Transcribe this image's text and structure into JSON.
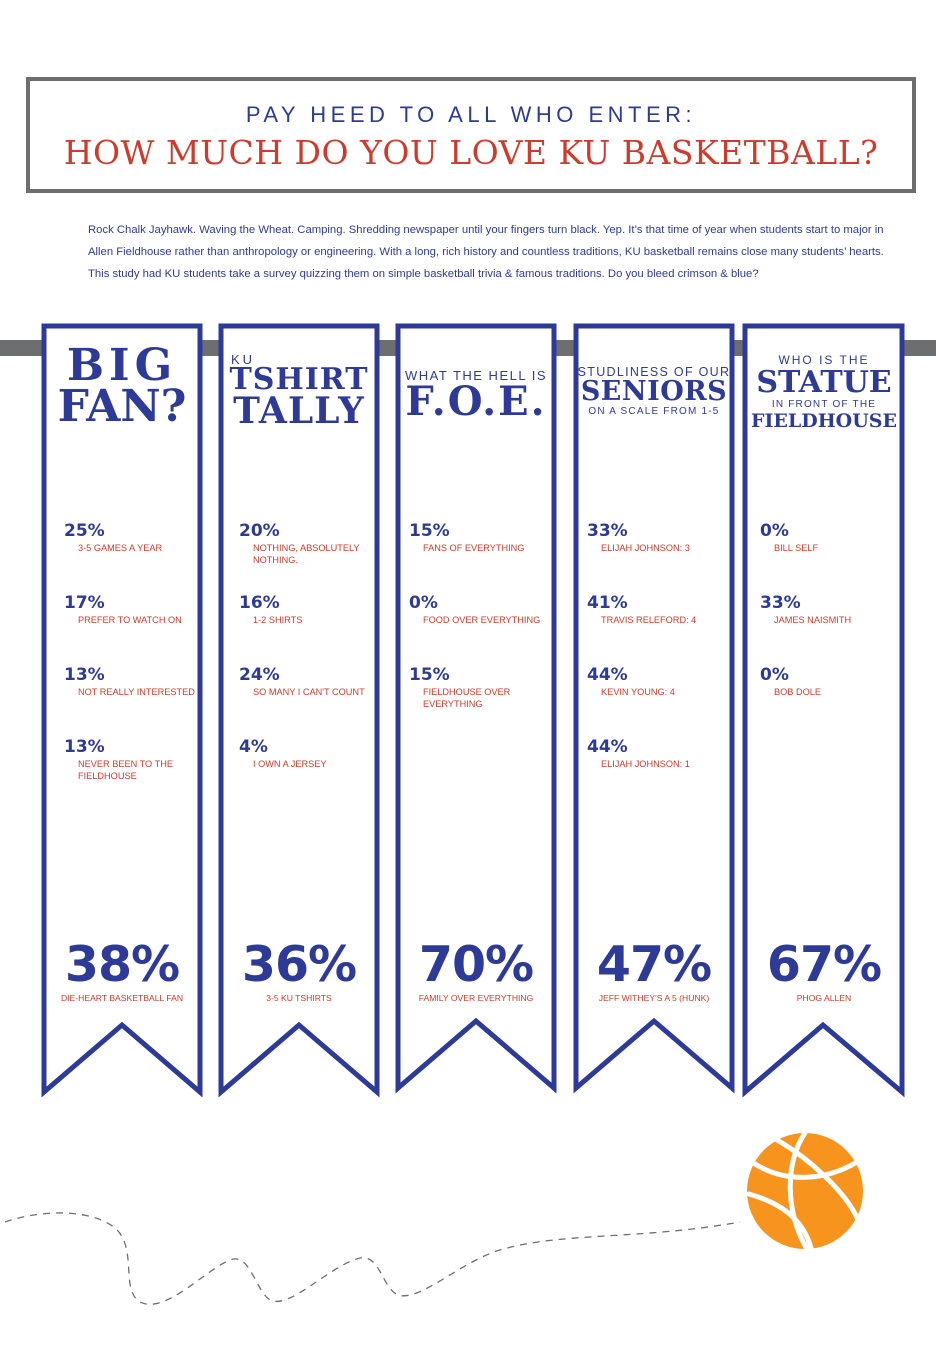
{
  "header": {
    "subtitle": "PAY HEED TO ALL WHO ENTER:",
    "title": "HOW MUCH DO YOU LOVE KU BASKETBALL?"
  },
  "intro": "Rock Chalk Jayhawk. Waving the Wheat. Camping. Shredding newspaper until your fingers turn black. Yep. It’s that time of year when students start to major in Allen Fieldhouse rather  than anthropology or engineering.  With a long, rich history and countless traditions, KU basketball remains close many students’ hearts. This study had KU students take a survey quizzing them on simple basketball trivia & famous traditions. Do you bleed crimson & blue?",
  "colors": {
    "blue": "#2e3a97",
    "red": "#cc3b2b",
    "gray": "#6d6e70",
    "ball": "#f7941d"
  },
  "banners": [
    {
      "head": {
        "line1": "BIG",
        "line2": "FAN?"
      },
      "stats": [
        {
          "pct": "25%",
          "label": "3-5 GAMES A YEAR"
        },
        {
          "pct": "17%",
          "label": "PREFER TO WATCH ON"
        },
        {
          "pct": "13%",
          "label": "NOT REALLY INTERESTED"
        },
        {
          "pct": "13%",
          "label": "NEVER BEEN TO THE FIELDHOUSE"
        }
      ],
      "big": {
        "pct": "38%",
        "label": "DIE-HEART BASKETBALL FAN"
      }
    },
    {
      "head": {
        "small": "KU",
        "line1": "TSHIRT",
        "line2": "TALLY"
      },
      "stats": [
        {
          "pct": "20%",
          "label": "NOTHING, ABSOLUTELY NOTHING."
        },
        {
          "pct": "16%",
          "label": "1-2 SHIRTS"
        },
        {
          "pct": "24%",
          "label": "SO MANY I CAN'T COUNT"
        },
        {
          "pct": "4%",
          "label": "I OWN A JERSEY"
        }
      ],
      "big": {
        "pct": "36%",
        "label": "3-5 KU TSHIRTS"
      }
    },
    {
      "head": {
        "small": "WHAT THE HELL IS",
        "line1": "F.O.E."
      },
      "stats": [
        {
          "pct": "15%",
          "label": "FANS OF EVERYTHING"
        },
        {
          "pct": "0%",
          "label": "FOOD OVER EVERYTHING"
        },
        {
          "pct": "15%",
          "label": "FIELDHOUSE OVER EVERYTHING"
        }
      ],
      "big": {
        "pct": "70%",
        "label": "FAMILY OVER EVERYTHING"
      }
    },
    {
      "head": {
        "small": "STUDLINESS OF OUR",
        "line1": "SENIORS",
        "small2": "ON A SCALE FROM 1-5"
      },
      "stats": [
        {
          "pct": "33%",
          "label": "ELIJAH JOHNSON: 3"
        },
        {
          "pct": "41%",
          "label": "TRAVIS RELEFORD: 4"
        },
        {
          "pct": "44%",
          "label": "KEVIN YOUNG: 4"
        },
        {
          "pct": "44%",
          "label": "ELIJAH JOHNSON: 1"
        }
      ],
      "big": {
        "pct": "47%",
        "label": "JEFF WITHEY'S A 5 (HUNK)"
      }
    },
    {
      "head": {
        "small": "WHO IS THE",
        "line1": "STATUE",
        "small2": "IN FRONT OF THE",
        "line2": "FIELDHOUSE"
      },
      "stats": [
        {
          "pct": "0%",
          "label": "BILL SELF"
        },
        {
          "pct": "33%",
          "label": "JAMES NAISMITH"
        },
        {
          "pct": "0%",
          "label": "BOB DOLE"
        }
      ],
      "big": {
        "pct": "67%",
        "label": "PHOG ALLEN"
      }
    }
  ]
}
